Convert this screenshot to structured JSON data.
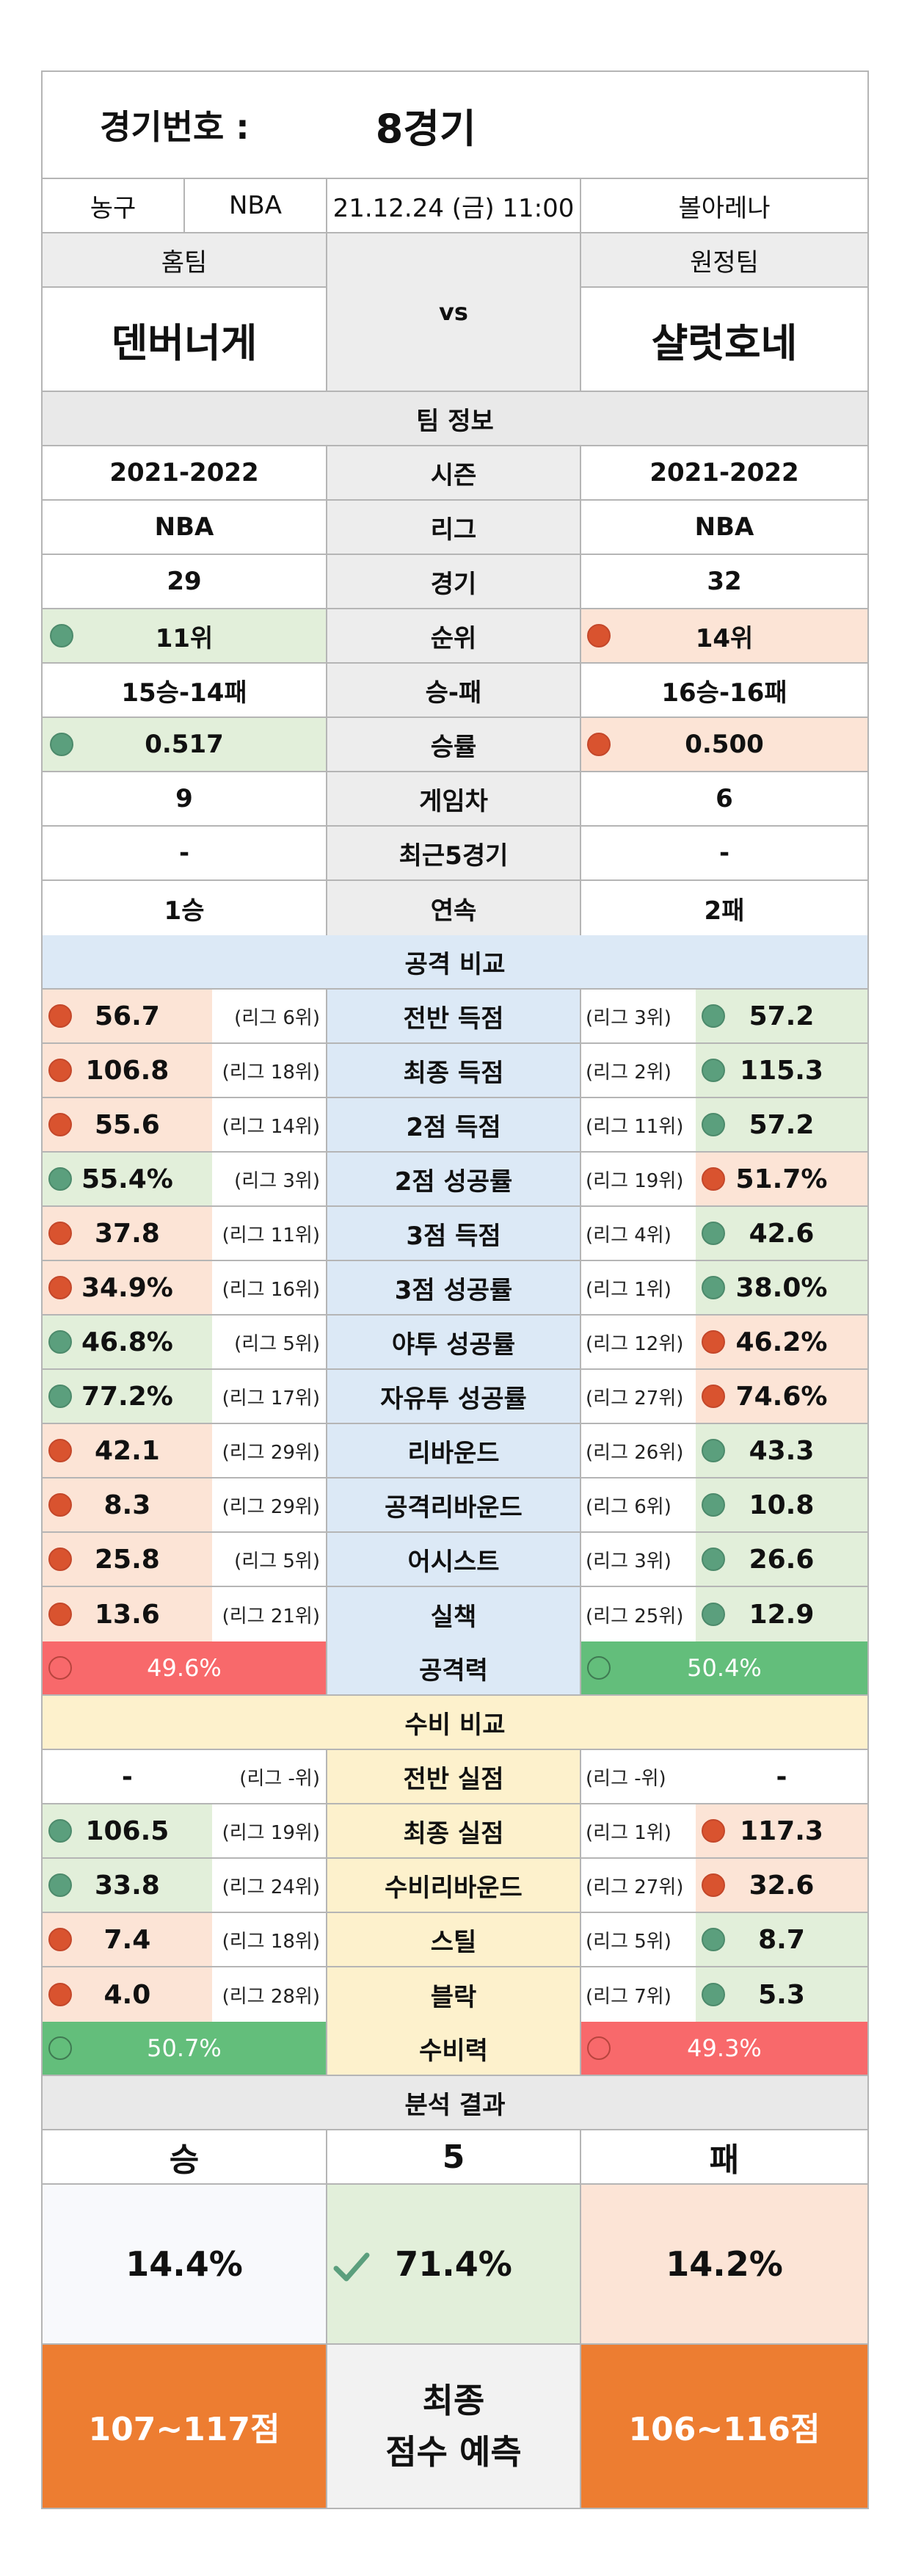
{
  "header": {
    "label": "경기번호 :",
    "value": "8경기"
  },
  "info": {
    "sport": "농구",
    "league": "NBA",
    "datetime": "21.12.24 (금) 11:00",
    "venue": "볼아레나"
  },
  "teams": {
    "home_label": "홈팀",
    "away_label": "원정팀",
    "vs": "vs",
    "home": "덴버너게",
    "away": "샬럿호네"
  },
  "team_info": {
    "title": "팀 정보",
    "rows": [
      {
        "home": "2021-2022",
        "label": "시즌",
        "away": "2021-2022"
      },
      {
        "home": "NBA",
        "label": "리그",
        "away": "NBA"
      },
      {
        "home": "29",
        "label": "경기",
        "away": "32"
      },
      {
        "home": "11위",
        "label": "순위",
        "away": "14위"
      },
      {
        "home": "15승-14패",
        "label": "승-패",
        "away": "16승-16패"
      },
      {
        "home": "0.517",
        "label": "승률",
        "away": "0.500"
      },
      {
        "home": "9",
        "label": "게임차",
        "away": "6"
      },
      {
        "home": "-",
        "label": "최근5경기",
        "away": "-"
      },
      {
        "home": "1승",
        "label": "연속",
        "away": "2패"
      }
    ]
  },
  "attack": {
    "title": "공격 비교",
    "rows": [
      {
        "hv": "56.7",
        "hr": "(리그 6위)",
        "label": "전반 득점",
        "ar": "(리그 3위)",
        "av": "57.2"
      },
      {
        "hv": "106.8",
        "hr": "(리그 18위)",
        "label": "최종 득점",
        "ar": "(리그 2위)",
        "av": "115.3"
      },
      {
        "hv": "55.6",
        "hr": "(리그 14위)",
        "label": "2점 득점",
        "ar": "(리그 11위)",
        "av": "57.2"
      },
      {
        "hv": "55.4%",
        "hr": "(리그 3위)",
        "label": "2점 성공률",
        "ar": "(리그 19위)",
        "av": "51.7%"
      },
      {
        "hv": "37.8",
        "hr": "(리그 11위)",
        "label": "3점 득점",
        "ar": "(리그 4위)",
        "av": "42.6"
      },
      {
        "hv": "34.9%",
        "hr": "(리그 16위)",
        "label": "3점 성공률",
        "ar": "(리그 1위)",
        "av": "38.0%"
      },
      {
        "hv": "46.8%",
        "hr": "(리그 5위)",
        "label": "야투 성공률",
        "ar": "(리그 12위)",
        "av": "46.2%"
      },
      {
        "hv": "77.2%",
        "hr": "(리그 17위)",
        "label": "자유투 성공률",
        "ar": "(리그 27위)",
        "av": "74.6%"
      },
      {
        "hv": "42.1",
        "hr": "(리그 29위)",
        "label": "리바운드",
        "ar": "(리그 26위)",
        "av": "43.3"
      },
      {
        "hv": "8.3",
        "hr": "(리그 29위)",
        "label": "공격리바운드",
        "ar": "(리그 6위)",
        "av": "10.8"
      },
      {
        "hv": "25.8",
        "hr": "(리그 5위)",
        "label": "어시스트",
        "ar": "(리그 3위)",
        "av": "26.6"
      },
      {
        "hv": "13.6",
        "hr": "(리그 21위)",
        "label": "실책",
        "ar": "(리그 25위)",
        "av": "12.9"
      }
    ],
    "power": {
      "home": "49.6%",
      "label": "공격력",
      "away": "50.4%"
    }
  },
  "defense": {
    "title": "수비 비교",
    "rows": [
      {
        "hv": "-",
        "hr": "(리그 -위)",
        "label": "전반 실점",
        "ar": "(리그 -위)",
        "av": "-"
      },
      {
        "hv": "106.5",
        "hr": "(리그 19위)",
        "label": "최종 실점",
        "ar": "(리그 1위)",
        "av": "117.3"
      },
      {
        "hv": "33.8",
        "hr": "(리그 24위)",
        "label": "수비리바운드",
        "ar": "(리그 27위)",
        "av": "32.6"
      },
      {
        "hv": "7.4",
        "hr": "(리그 18위)",
        "label": "스틸",
        "ar": "(리그 5위)",
        "av": "8.7"
      },
      {
        "hv": "4.0",
        "hr": "(리그 28위)",
        "label": "블락",
        "ar": "(리그 7위)",
        "av": "5.3"
      }
    ],
    "power": {
      "home": "50.7%",
      "label": "수비력",
      "away": "49.3%"
    }
  },
  "result": {
    "title": "분석 결과",
    "win": "승",
    "draw": "5",
    "lose": "패",
    "win_pct": "14.4%",
    "draw_pct": "71.4%",
    "lose_pct": "14.2%",
    "home_score": "107~117점",
    "final_line1": "최종",
    "final_line2": "점수 예측",
    "away_score": "106~116점"
  },
  "colors": {
    "green": "#e2efda",
    "peach": "#fce4d6",
    "blue": "#dce9f6",
    "cream": "#fdf1cc",
    "orange": "#ed7d31",
    "good": "#63be7b",
    "bad": "#f8696b"
  }
}
